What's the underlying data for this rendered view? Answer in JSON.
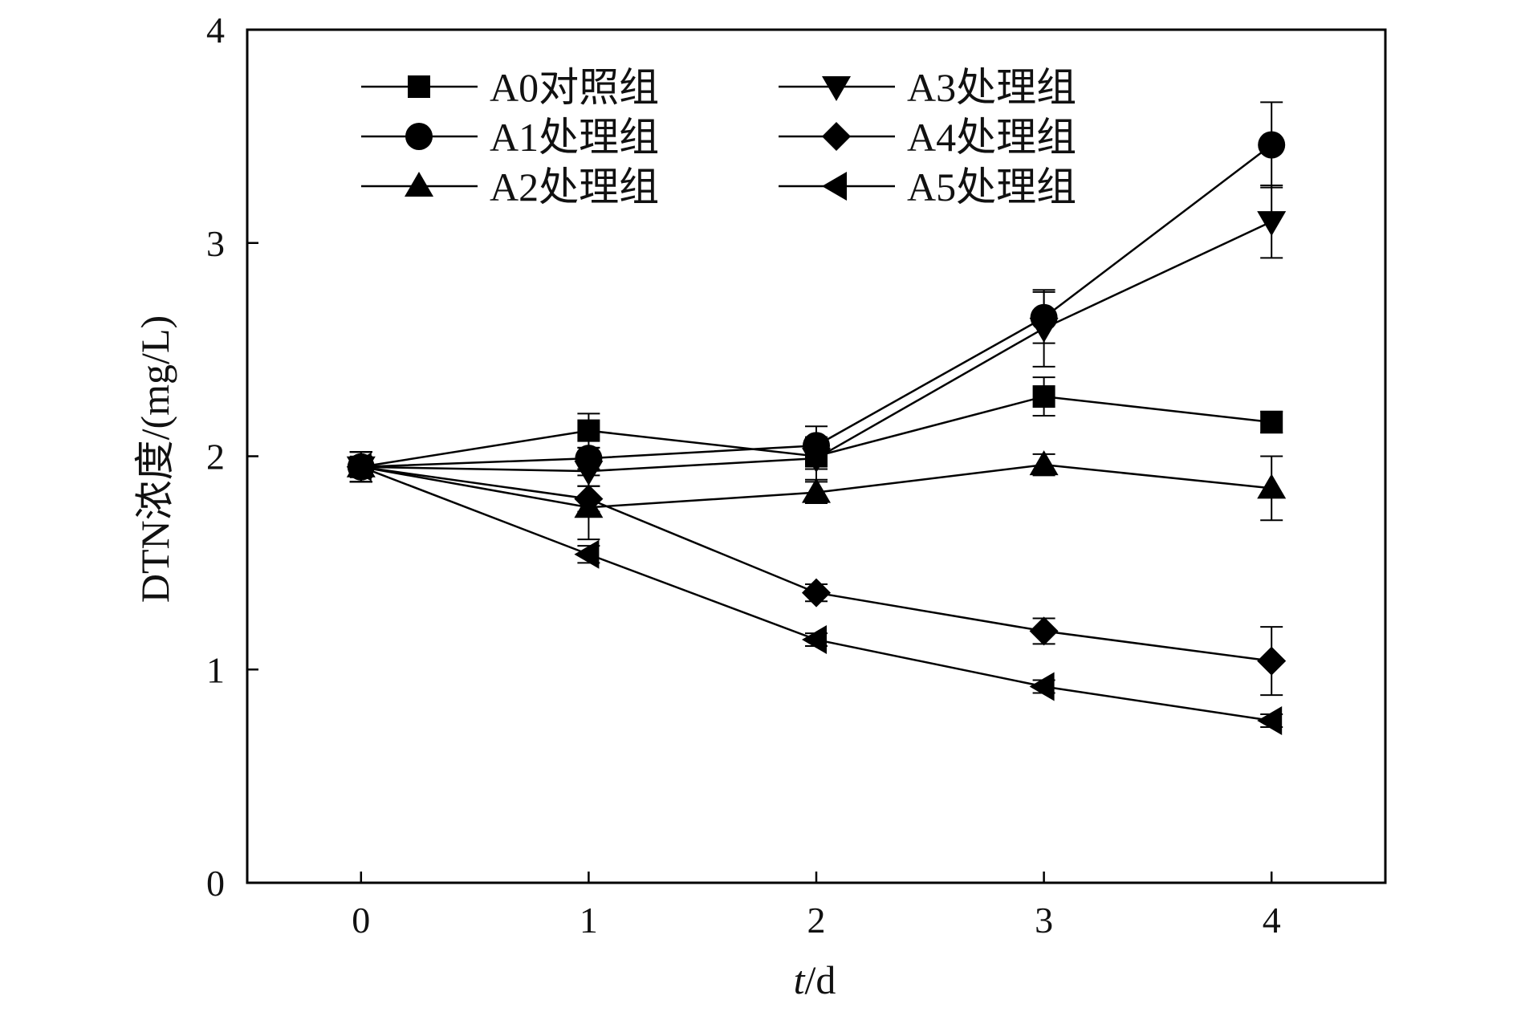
{
  "chart_data": {
    "type": "line",
    "xlabel_italic": "t",
    "xlabel_rest": "/d",
    "ylabel": "DTN浓度/(mg/L)",
    "xlim": [
      -0.5,
      4.5
    ],
    "ylim": [
      0,
      4
    ],
    "x_ticks": [
      0,
      1,
      2,
      3,
      4
    ],
    "y_ticks": [
      0,
      1,
      2,
      3,
      4
    ],
    "grid": false,
    "legend_position": "top-left",
    "legend_columns": 2,
    "line_color": "#000000",
    "x": [
      0,
      1,
      2,
      3,
      4
    ],
    "series": [
      {
        "name": "A0对照组",
        "marker": "square",
        "values": [
          1.95,
          2.12,
          2.0,
          2.28,
          2.16
        ],
        "errors": [
          0.07,
          0.08,
          0.06,
          0.09,
          0.05
        ]
      },
      {
        "name": "A1处理组",
        "marker": "circle",
        "values": [
          1.95,
          1.99,
          2.05,
          2.65,
          3.46
        ],
        "errors": [
          0.07,
          0.05,
          0.09,
          0.12,
          0.2
        ]
      },
      {
        "name": "A2处理组",
        "marker": "triangle-up",
        "values": [
          1.95,
          1.76,
          1.83,
          1.96,
          1.85
        ],
        "errors": [
          0.07,
          0.15,
          0.05,
          0.05,
          0.15
        ]
      },
      {
        "name": "A3处理组",
        "marker": "triangle-down",
        "values": [
          1.95,
          1.93,
          1.99,
          2.6,
          3.1
        ],
        "errors": [
          0.07,
          0.07,
          0.1,
          0.18,
          0.17
        ]
      },
      {
        "name": "A4处理组",
        "marker": "diamond",
        "values": [
          1.95,
          1.8,
          1.36,
          1.18,
          1.04
        ],
        "errors": [
          0.07,
          0.06,
          0.04,
          0.06,
          0.16
        ]
      },
      {
        "name": "A5处理组",
        "marker": "triangle-left",
        "values": [
          1.95,
          1.54,
          1.14,
          0.92,
          0.76
        ],
        "errors": [
          0.07,
          0.04,
          0.03,
          0.03,
          0.03
        ]
      }
    ]
  }
}
